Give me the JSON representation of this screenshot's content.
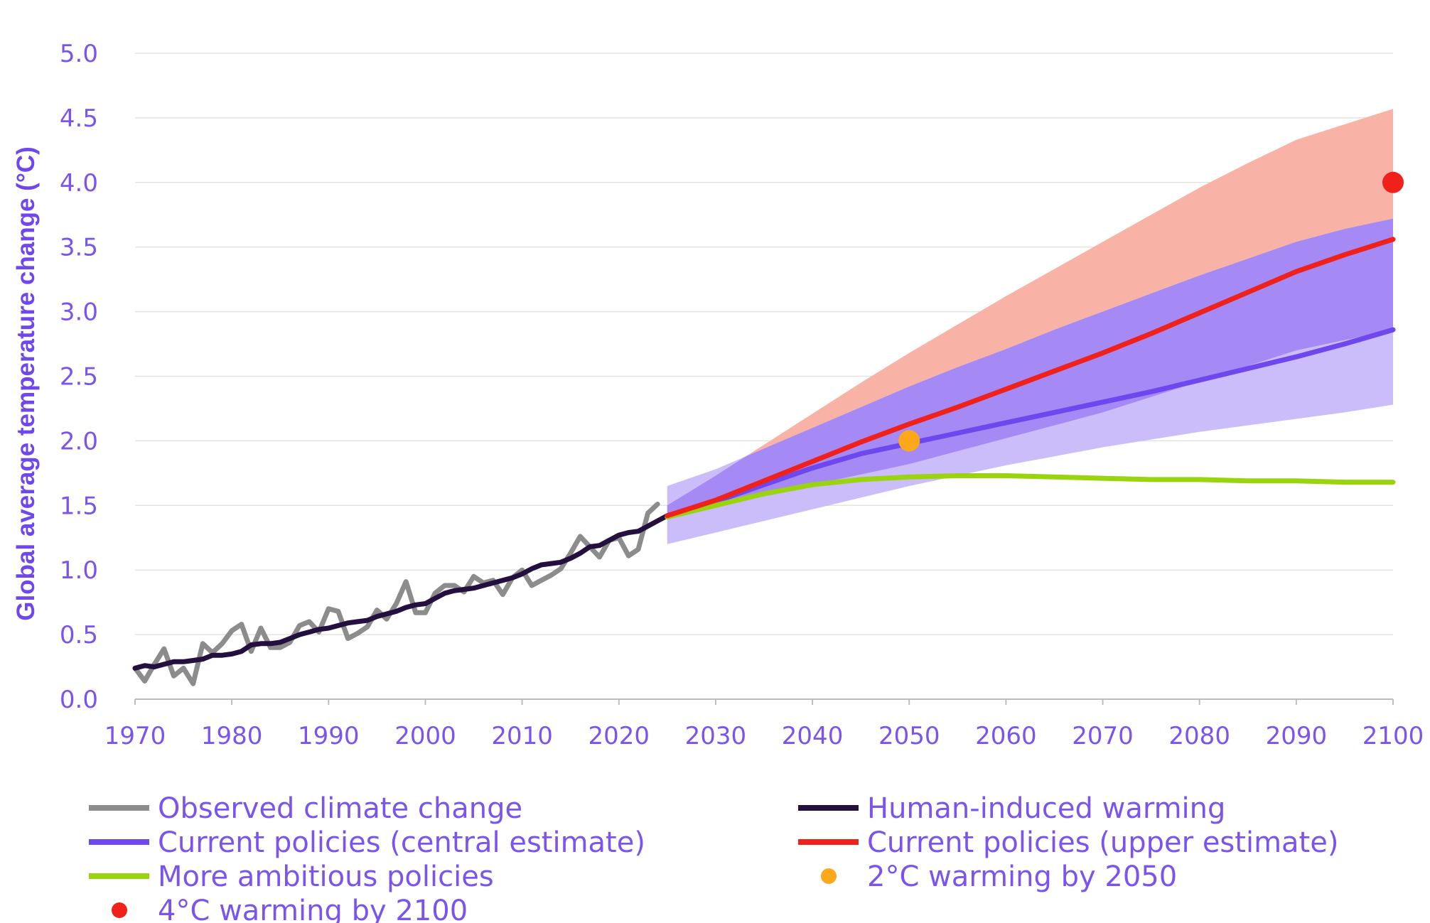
{
  "chart_data": {
    "type": "line",
    "title": "",
    "xlabel": "",
    "ylabel": "Global average temperature change (°C)",
    "xlim": [
      1970,
      2100
    ],
    "ylim": [
      0,
      5
    ],
    "x_ticks": [
      "1970",
      "1980",
      "1990",
      "2000",
      "2010",
      "2020",
      "2030",
      "2040",
      "2050",
      "2060",
      "2070",
      "2080",
      "2090",
      "2100"
    ],
    "y_ticks": [
      "0.0",
      "0.5",
      "1.0",
      "1.5",
      "2.0",
      "2.5",
      "3.0",
      "3.5",
      "4.0",
      "4.5",
      "5.0"
    ],
    "grid": "horizontal",
    "legend_position": "bottom",
    "colors": {
      "observed": "#8c8c8c",
      "human": "#24103f",
      "central": "#6f47ee",
      "upper": "#f0201a",
      "ambitious": "#9ad40e",
      "marker_2050": "#fba81a",
      "marker_2100": "#f0201a",
      "band_upper": "#f9b3a6",
      "band_central_dark": "#a58af5",
      "band_central_light": "#cbbdf9",
      "axis_text": "#7b54f0"
    },
    "series": [
      {
        "name": "Observed climate change",
        "x": [
          1970,
          1971,
          1972,
          1973,
          1974,
          1975,
          1976,
          1977,
          1978,
          1979,
          1980,
          1981,
          1982,
          1983,
          1984,
          1985,
          1986,
          1987,
          1988,
          1989,
          1990,
          1991,
          1992,
          1993,
          1994,
          1995,
          1996,
          1997,
          1998,
          1999,
          2000,
          2001,
          2002,
          2003,
          2004,
          2005,
          2006,
          2007,
          2008,
          2009,
          2010,
          2011,
          2012,
          2013,
          2014,
          2015,
          2016,
          2017,
          2018,
          2019,
          2020,
          2021,
          2022,
          2023,
          2024
        ],
        "values": [
          0.24,
          0.14,
          0.27,
          0.39,
          0.18,
          0.24,
          0.12,
          0.43,
          0.36,
          0.43,
          0.53,
          0.58,
          0.37,
          0.55,
          0.4,
          0.4,
          0.44,
          0.57,
          0.6,
          0.52,
          0.7,
          0.68,
          0.47,
          0.51,
          0.56,
          0.69,
          0.62,
          0.74,
          0.91,
          0.67,
          0.67,
          0.82,
          0.88,
          0.88,
          0.83,
          0.95,
          0.9,
          0.92,
          0.81,
          0.94,
          1.0,
          0.88,
          0.92,
          0.96,
          1.01,
          1.13,
          1.26,
          1.18,
          1.1,
          1.23,
          1.25,
          1.11,
          1.16,
          1.44,
          1.51
        ]
      },
      {
        "name": "Human-induced warming",
        "x": [
          1970,
          1971,
          1972,
          1973,
          1974,
          1975,
          1976,
          1977,
          1978,
          1979,
          1980,
          1981,
          1982,
          1983,
          1984,
          1985,
          1986,
          1987,
          1988,
          1989,
          1990,
          1991,
          1992,
          1993,
          1994,
          1995,
          1996,
          1997,
          1998,
          1999,
          2000,
          2001,
          2002,
          2003,
          2004,
          2005,
          2006,
          2007,
          2008,
          2009,
          2010,
          2011,
          2012,
          2013,
          2014,
          2015,
          2016,
          2017,
          2018,
          2019,
          2020,
          2021,
          2022,
          2023,
          2024,
          2025
        ],
        "values": [
          0.24,
          0.26,
          0.25,
          0.27,
          0.29,
          0.29,
          0.3,
          0.31,
          0.34,
          0.34,
          0.35,
          0.37,
          0.42,
          0.43,
          0.43,
          0.44,
          0.47,
          0.5,
          0.52,
          0.54,
          0.55,
          0.57,
          0.59,
          0.6,
          0.61,
          0.64,
          0.66,
          0.68,
          0.71,
          0.73,
          0.74,
          0.78,
          0.82,
          0.84,
          0.85,
          0.86,
          0.88,
          0.9,
          0.92,
          0.94,
          0.97,
          1.01,
          1.04,
          1.05,
          1.06,
          1.09,
          1.13,
          1.18,
          1.19,
          1.23,
          1.27,
          1.29,
          1.3,
          1.34,
          1.38,
          1.42
        ]
      },
      {
        "name": "Current policies (central estimate)",
        "x": [
          2025,
          2030,
          2035,
          2040,
          2045,
          2050,
          2055,
          2060,
          2065,
          2070,
          2075,
          2080,
          2085,
          2090,
          2095,
          2100
        ],
        "values": [
          1.42,
          1.53,
          1.66,
          1.79,
          1.9,
          1.98,
          2.06,
          2.14,
          2.22,
          2.3,
          2.38,
          2.47,
          2.56,
          2.65,
          2.75,
          2.86
        ],
        "band_low": [
          1.2,
          1.29,
          1.38,
          1.47,
          1.56,
          1.65,
          1.73,
          1.81,
          1.88,
          1.95,
          2.01,
          2.07,
          2.12,
          2.17,
          2.22,
          2.28
        ],
        "band_high": [
          1.65,
          1.78,
          1.94,
          2.1,
          2.26,
          2.42,
          2.57,
          2.71,
          2.86,
          3.0,
          3.14,
          3.28,
          3.41,
          3.54,
          3.64,
          3.72
        ]
      },
      {
        "name": "Current policies (upper estimate)",
        "x": [
          2025,
          2030,
          2035,
          2040,
          2045,
          2050,
          2055,
          2060,
          2065,
          2070,
          2075,
          2080,
          2085,
          2090,
          2095,
          2100
        ],
        "values": [
          1.42,
          1.54,
          1.69,
          1.84,
          1.99,
          2.13,
          2.26,
          2.4,
          2.54,
          2.68,
          2.83,
          2.99,
          3.15,
          3.31,
          3.44,
          3.56
        ],
        "band_low": [
          1.42,
          1.5,
          1.58,
          1.66,
          1.74,
          1.82,
          1.92,
          2.02,
          2.12,
          2.22,
          2.34,
          2.46,
          2.58,
          2.7,
          2.78,
          2.86
        ],
        "band_high": [
          1.5,
          1.73,
          1.97,
          2.21,
          2.45,
          2.68,
          2.9,
          3.12,
          3.33,
          3.54,
          3.75,
          3.96,
          4.15,
          4.33,
          4.45,
          4.57
        ]
      },
      {
        "name": "More ambitious policies",
        "x": [
          2025,
          2030,
          2035,
          2040,
          2045,
          2050,
          2055,
          2060,
          2065,
          2070,
          2075,
          2080,
          2085,
          2090,
          2095,
          2100
        ],
        "values": [
          1.41,
          1.5,
          1.59,
          1.66,
          1.7,
          1.72,
          1.73,
          1.73,
          1.72,
          1.71,
          1.7,
          1.7,
          1.69,
          1.69,
          1.68,
          1.68
        ]
      }
    ],
    "markers": [
      {
        "name": "2°C warming by 2050",
        "x": 2050,
        "y": 2.0
      },
      {
        "name": "4°C warming by 2100",
        "x": 2100,
        "y": 4.0
      }
    ]
  }
}
